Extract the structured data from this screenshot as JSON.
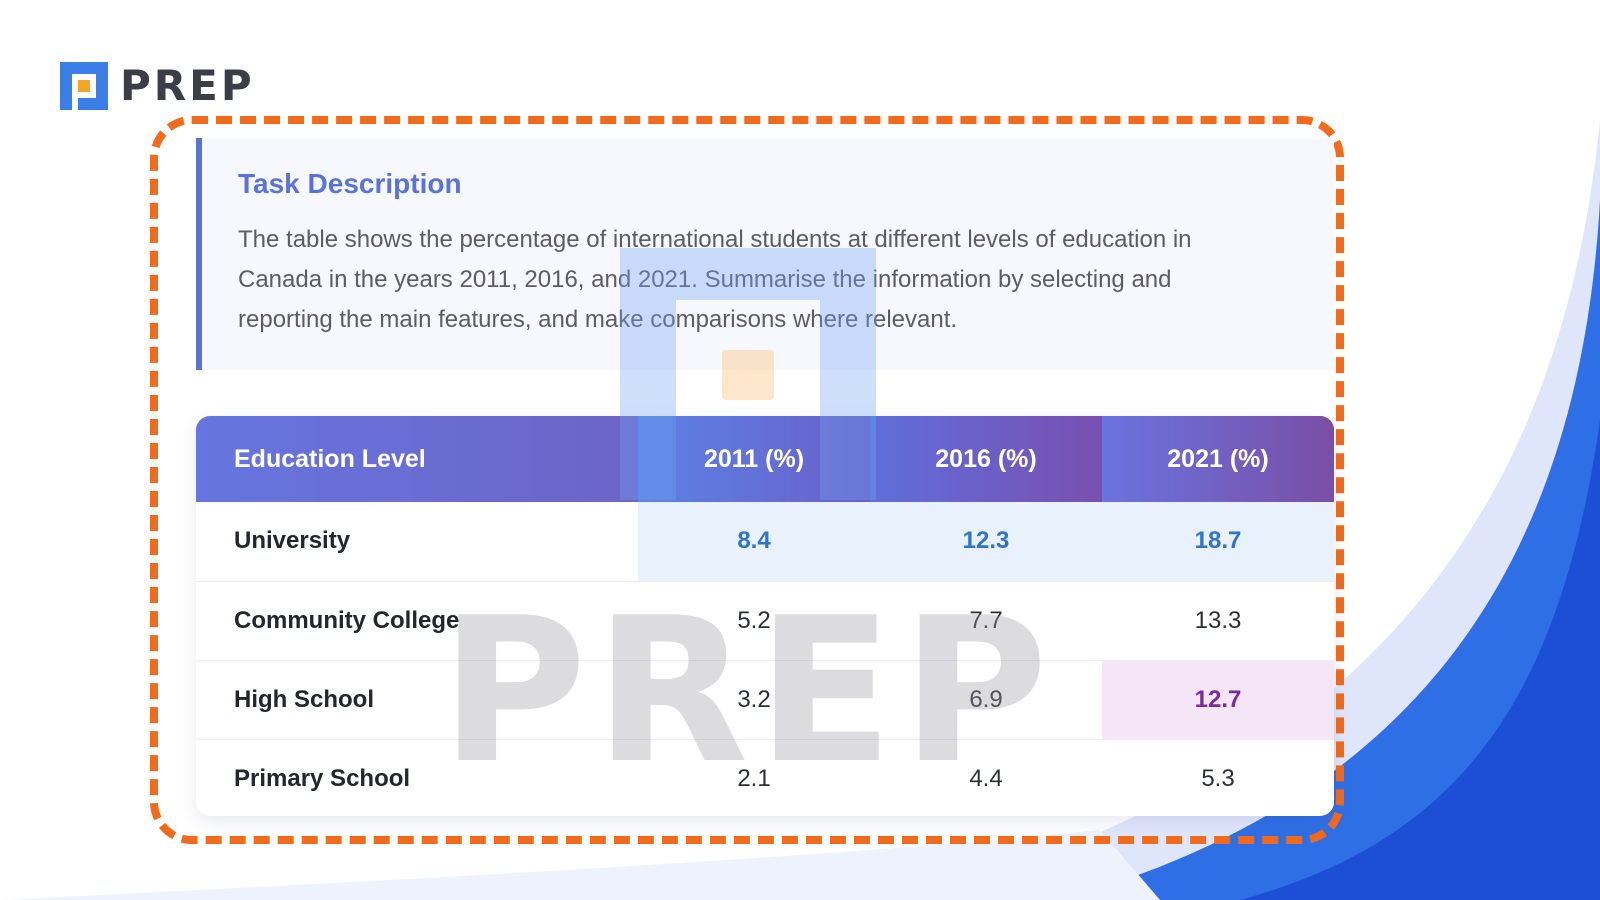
{
  "brand": {
    "name": "PREP",
    "watermark_text": "PREP",
    "colors": {
      "blue": "#3b7ee8",
      "orange": "#f5a623",
      "frame_orange": "#f26a1b",
      "accent": "#5b72d9"
    }
  },
  "task": {
    "title": "Task Description",
    "body": "The table shows the percentage of international students at different levels of education in Canada in the years 2011, 2016, and 2021. Summarise the information by selecting and reporting the main features, and make comparisons where relevant."
  },
  "table": {
    "headers": [
      "Education Level",
      "2011 (%)",
      "2016 (%)",
      "2021 (%)"
    ],
    "rows": [
      {
        "level": "University",
        "values": [
          "8.4",
          "12.3",
          "18.7"
        ]
      },
      {
        "level": "Community College",
        "values": [
          "5.2",
          "7.7",
          "13.3"
        ]
      },
      {
        "level": "High School",
        "values": [
          "3.2",
          "6.9",
          "12.7"
        ]
      },
      {
        "level": "Primary School",
        "values": [
          "2.1",
          "4.4",
          "5.3"
        ]
      }
    ]
  }
}
